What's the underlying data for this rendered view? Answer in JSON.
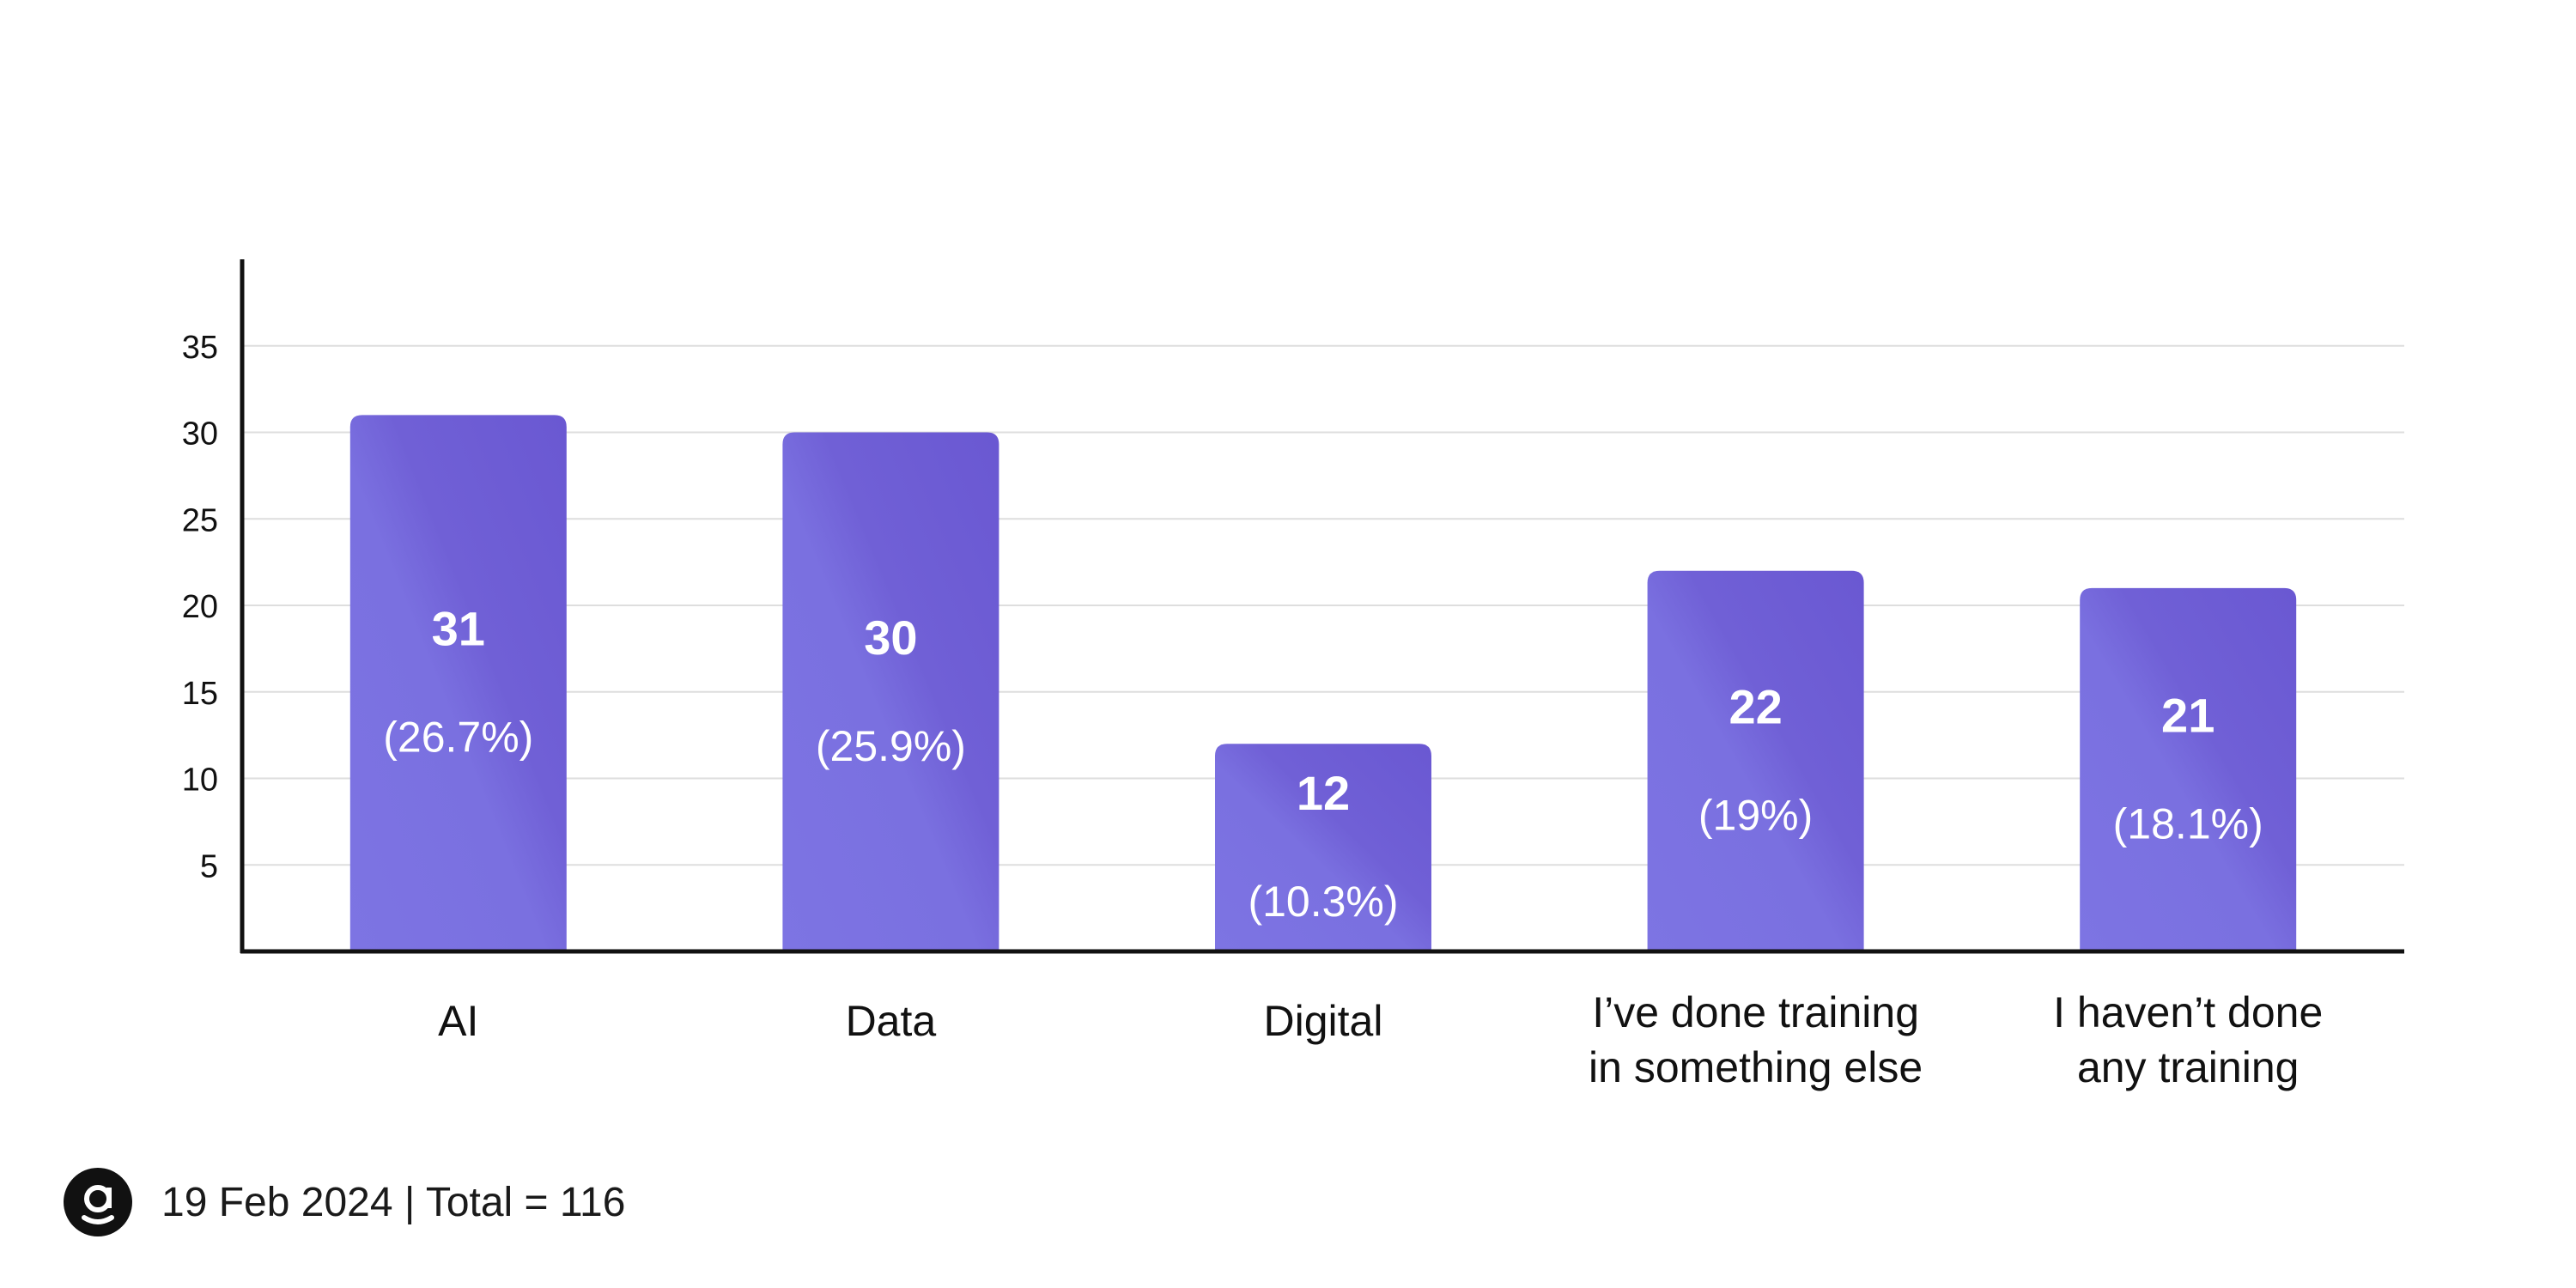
{
  "chart_data": {
    "type": "bar",
    "categories": [
      [
        "AI"
      ],
      [
        "Data"
      ],
      [
        "Digital"
      ],
      [
        "I’ve done training",
        "in something else"
      ],
      [
        "I haven’t done",
        "any training"
      ]
    ],
    "values": [
      31,
      30,
      12,
      22,
      21
    ],
    "value_labels": [
      "31",
      "30",
      "12",
      "22",
      "21"
    ],
    "percent_labels": [
      "(26.7%)",
      "(25.9%)",
      "(10.3%)",
      "(19%)",
      "(18.1%)"
    ],
    "title": "",
    "xlabel": "",
    "ylabel": "",
    "ylim": [
      0,
      40
    ],
    "yticks": [
      5,
      10,
      15,
      20,
      25,
      30,
      35
    ],
    "grid": true,
    "legend": "none",
    "bar_color": "#7264d6",
    "bar_color_light": "#7d74e3",
    "label_color": "#ffffff"
  },
  "footer": {
    "logo_icon": "brand-logo-icon",
    "text": "19 Feb 2024 | Total = 116"
  }
}
